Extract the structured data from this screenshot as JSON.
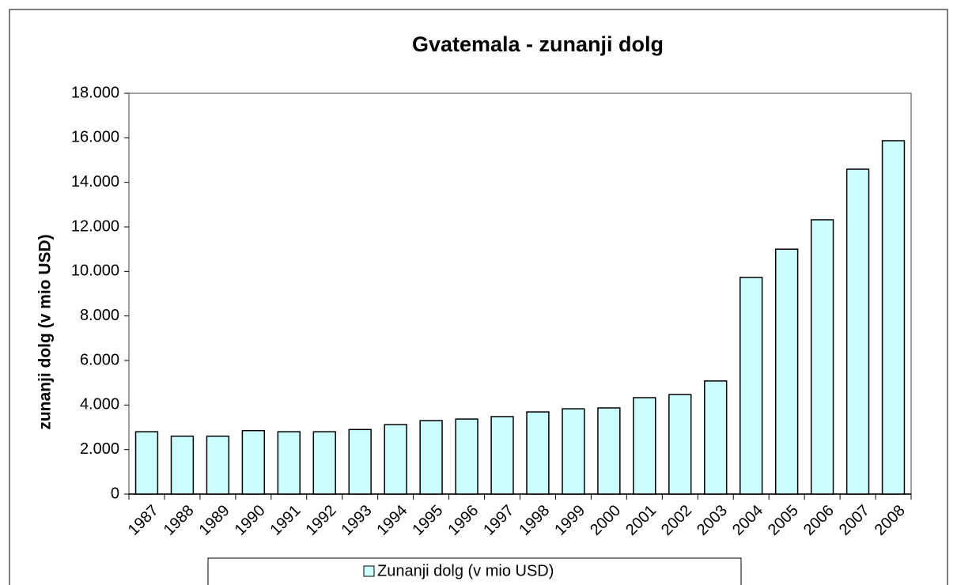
{
  "chart_data": {
    "type": "bar",
    "title": "Gvatemala - zunanji dolg",
    "y_label": "zunanji dolg (v mio USD)",
    "categories": [
      "1987",
      "1988",
      "1989",
      "1990",
      "1991",
      "1992",
      "1993",
      "1994",
      "1995",
      "1996",
      "1997",
      "1998",
      "1999",
      "2000",
      "2001",
      "2002",
      "2003",
      "2004",
      "2005",
      "2006",
      "2007",
      "2008"
    ],
    "series": [
      {
        "name": "Zunanji dolg (v mio USD)",
        "color": "#ccffff",
        "values": [
          2800,
          2600,
          2600,
          2850,
          2800,
          2800,
          2900,
          3120,
          3300,
          3370,
          3480,
          3690,
          3830,
          3870,
          4330,
          4470,
          5080,
          9730,
          11000,
          12320,
          14590,
          15870
        ]
      }
    ],
    "ylim": [
      0,
      18000
    ],
    "yticks": [
      0,
      {
        "value": 2000,
        "label": "2.000"
      },
      {
        "value": 4000,
        "label": "4.000"
      },
      {
        "value": 6000,
        "label": "6.000"
      },
      {
        "value": 8000,
        "label": "8.000"
      },
      {
        "value": 10000,
        "label": "10.000"
      },
      {
        "value": 12000,
        "label": "12.000"
      },
      {
        "value": 14000,
        "label": "14.000"
      },
      {
        "value": 16000,
        "label": "16.000"
      },
      {
        "value": 18000,
        "label": "18.000"
      }
    ],
    "legend": "bottom"
  }
}
